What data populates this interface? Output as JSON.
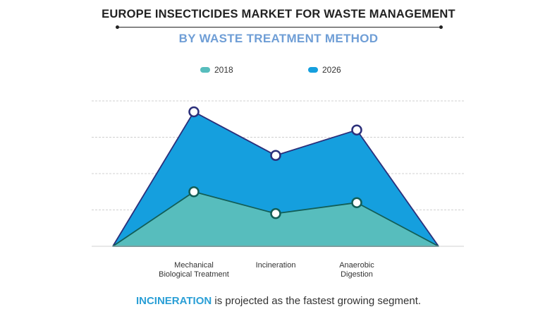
{
  "header": {
    "title": "EUROPE INSECTICIDES MARKET FOR WASTE MANAGEMENT",
    "subtitle": "BY WASTE TREATMENT METHOD"
  },
  "colors": {
    "series_2018": "#57bdbd",
    "series_2026": "#159fde",
    "subtitle": "#6f9ed6",
    "highlight": "#2a9fd6",
    "grid": "#d0d0d0",
    "marker_2026_ring": "#2b2f7a",
    "marker_2018_ring": "#125e57"
  },
  "chart_data": {
    "type": "area",
    "categories": [
      "Mechanical\nBiological Treatment",
      "Incineration",
      "Anaerobic\nDigestion"
    ],
    "series": [
      {
        "name": "2018",
        "values": [
          1.5,
          0.9,
          1.2
        ]
      },
      {
        "name": "2026",
        "values": [
          3.7,
          2.5,
          3.2
        ]
      }
    ],
    "ylim": [
      0,
      4
    ],
    "grid": true,
    "legend": "top-center"
  },
  "caption": {
    "highlight": "INCINERATION",
    "rest": " is projected as the fastest growing segment."
  }
}
